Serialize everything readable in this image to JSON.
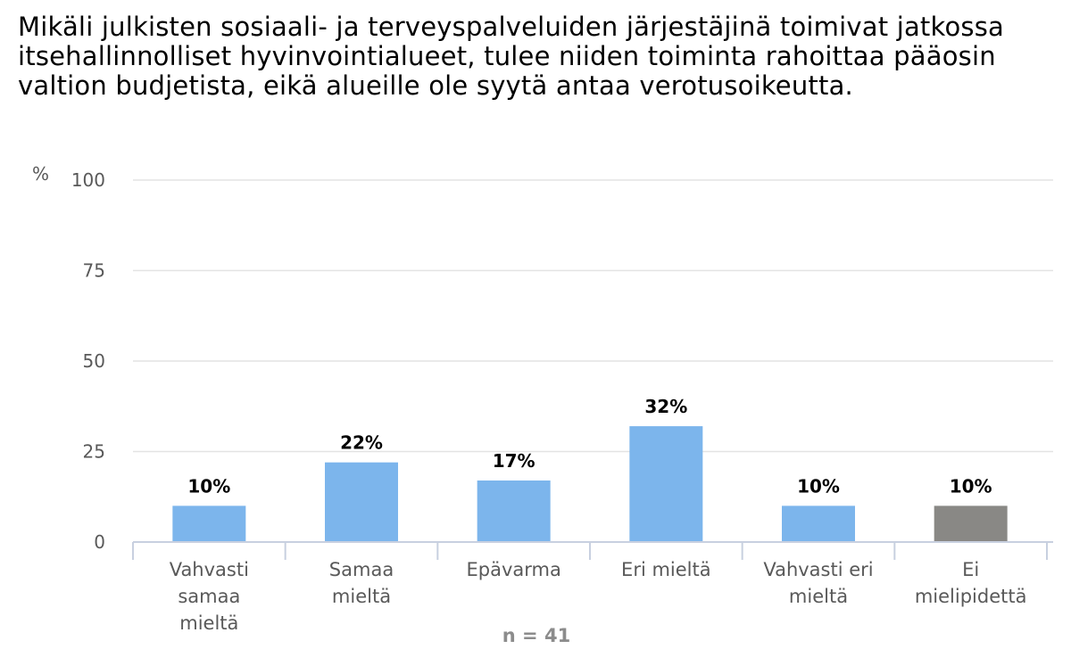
{
  "chart_data": {
    "type": "bar",
    "title": "Mikäli julkisten sosiaali- ja terveyspalveluiden järjestäjinä toimivat jatkossa itsehallinnolliset hyvinvointialueet, tulee niiden toiminta rahoittaa pääosin valtion budjetista, eikä alueille ole syytä antaa verotusoikeutta.",
    "ylabel": "%",
    "ylim": [
      0,
      100
    ],
    "yticks": [
      0,
      25,
      50,
      75,
      100
    ],
    "grid": true,
    "categories": [
      [
        "Vahvasti",
        "samaa",
        "mieltä"
      ],
      [
        "Samaa",
        "mieltä"
      ],
      [
        "Epävarma"
      ],
      [
        "Eri mieltä"
      ],
      [
        "Vahvasti eri",
        "mieltä"
      ],
      [
        "Ei",
        "mielipidettä"
      ]
    ],
    "values": [
      10,
      22,
      17,
      32,
      10,
      10
    ],
    "data_labels": [
      "10%",
      "22%",
      "17%",
      "32%",
      "10%",
      "10%"
    ],
    "colors": [
      "#7cb5ec",
      "#7cb5ec",
      "#7cb5ec",
      "#7cb5ec",
      "#7cb5ec",
      "#898885"
    ],
    "note": "n = 41"
  }
}
